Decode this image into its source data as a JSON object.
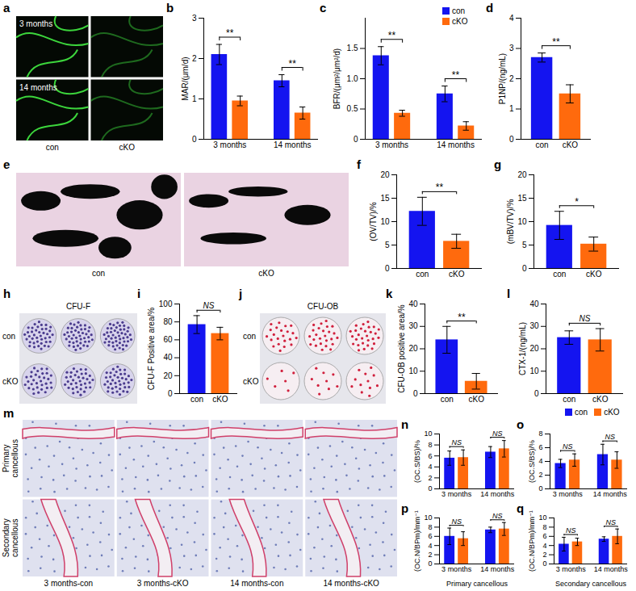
{
  "chart_data": [
    {
      "panel": "b",
      "type": "bar",
      "ylabel": "MAR/(μm/d)",
      "categories": [
        "3 months",
        "14 months"
      ],
      "series": [
        {
          "name": "con",
          "color": "#1414f0",
          "values": [
            2.1,
            1.45
          ],
          "errors": [
            0.25,
            0.15
          ]
        },
        {
          "name": "cKO",
          "color": "#ff6a0d",
          "values": [
            0.95,
            0.65
          ],
          "errors": [
            0.12,
            0.15
          ]
        }
      ],
      "ylim": [
        0,
        3
      ],
      "yticks": [
        0,
        1,
        2,
        3
      ],
      "significance": [
        "**",
        "**"
      ]
    },
    {
      "panel": "c",
      "type": "bar",
      "ylabel": "BFR/(μm²/μm²/d)",
      "categories": [
        "3 months",
        "14 months"
      ],
      "series": [
        {
          "name": "con",
          "color": "#1414f0",
          "values": [
            1.38,
            0.75
          ],
          "errors": [
            0.15,
            0.13
          ]
        },
        {
          "name": "cKO",
          "color": "#ff6a0d",
          "values": [
            0.43,
            0.22
          ],
          "errors": [
            0.05,
            0.07
          ]
        }
      ],
      "ylim": [
        0,
        2
      ],
      "yticks": [
        0,
        0.5,
        {
          "value": 1,
          "label": "1.0"
        },
        1.5
      ],
      "significance": [
        "**",
        "**"
      ],
      "legend": "top-right"
    },
    {
      "panel": "d",
      "type": "bar",
      "ylabel": "P1NP/(ng/mL)",
      "categories": [
        "con",
        "cKO"
      ],
      "values": [
        2.7,
        1.5
      ],
      "errors": [
        0.15,
        0.3
      ],
      "colors": [
        "#1414f0",
        "#ff6a0d"
      ],
      "ylim": [
        0,
        4
      ],
      "yticks": [
        0,
        1,
        2,
        3,
        4
      ],
      "significance": [
        "**"
      ]
    },
    {
      "panel": "f",
      "type": "bar",
      "ylabel": "(OV/TV)/%",
      "categories": [
        "con",
        "cKO"
      ],
      "values": [
        12.2,
        5.8
      ],
      "errors": [
        3,
        1.5
      ],
      "colors": [
        "#1414f0",
        "#ff6a0d"
      ],
      "ylim": [
        0,
        20
      ],
      "yticks": [
        0,
        5,
        10,
        15,
        20
      ],
      "significance": [
        "**"
      ]
    },
    {
      "panel": "g",
      "type": "bar",
      "ylabel": "(mBV/TV)/%",
      "categories": [
        "con",
        "cKO"
      ],
      "values": [
        9.2,
        5.2
      ],
      "errors": [
        3,
        1.5
      ],
      "colors": [
        "#1414f0",
        "#ff6a0d"
      ],
      "ylim": [
        0,
        20
      ],
      "yticks": [
        0,
        5,
        10,
        15,
        20
      ],
      "significance": [
        "*"
      ]
    },
    {
      "panel": "i",
      "type": "bar",
      "ylabel": "CFU-F Positive area/%",
      "categories": [
        "con",
        "cKO"
      ],
      "values": [
        77,
        67
      ],
      "errors": [
        10,
        7
      ],
      "colors": [
        "#1414f0",
        "#ff6a0d"
      ],
      "ylim": [
        0,
        100
      ],
      "yticks": [
        0,
        20,
        40,
        60,
        80,
        100
      ],
      "significance": [
        "NS"
      ]
    },
    {
      "panel": "k",
      "type": "bar",
      "ylabel": "CFU-OB positive area/%",
      "categories": [
        "con",
        "cKO"
      ],
      "values": [
        24,
        5.5
      ],
      "errors": [
        6,
        3.5
      ],
      "colors": [
        "#1414f0",
        "#ff6a0d"
      ],
      "ylim": [
        0,
        40
      ],
      "yticks": [
        0,
        10,
        20,
        30,
        40
      ],
      "significance": [
        "**"
      ]
    },
    {
      "panel": "l",
      "type": "bar",
      "ylabel": "CTX-1/(ng/mL)",
      "categories": [
        "con",
        "cKO"
      ],
      "values": [
        25,
        24
      ],
      "errors": [
        3,
        5
      ],
      "colors": [
        "#1414f0",
        "#ff6a0d"
      ],
      "ylim": [
        0,
        40
      ],
      "yticks": [
        0,
        10,
        20,
        30,
        40
      ],
      "significance": [
        "NS"
      ]
    },
    {
      "panel": "n",
      "type": "bar",
      "ylabel": "(OC.S/BS)/%",
      "categories": [
        "3 months",
        "14 months"
      ],
      "series": [
        {
          "name": "con",
          "color": "#1414f0",
          "values": [
            5.6,
            6.7
          ],
          "errors": [
            1.3,
            1.0
          ]
        },
        {
          "name": "cKO",
          "color": "#ff6a0d",
          "values": [
            5.7,
            7.3
          ],
          "errors": [
            1.4,
            1.5
          ]
        }
      ],
      "ylim": [
        0,
        10
      ],
      "yticks": [
        0,
        2,
        4,
        6,
        8,
        10
      ],
      "significance": [
        "NS",
        "NS"
      ],
      "legend": "top-right"
    },
    {
      "panel": "o",
      "type": "bar",
      "ylabel": "(OC.S/BS)/%",
      "categories": [
        "3 months",
        "14 months"
      ],
      "series": [
        {
          "name": "con",
          "color": "#1414f0",
          "values": [
            3.7,
            5.0
          ],
          "errors": [
            0.6,
            1.5
          ]
        },
        {
          "name": "cKO",
          "color": "#ff6a0d",
          "values": [
            4.2,
            4.2
          ],
          "errors": [
            0.9,
            1.2
          ]
        }
      ],
      "ylim": [
        0,
        8
      ],
      "yticks": [
        0,
        2,
        4,
        6,
        8
      ],
      "significance": [
        "NS",
        "NS"
      ]
    },
    {
      "panel": "p",
      "type": "bar",
      "ylabel": "(OC.N/BPm)/mm⁻¹",
      "xlabel": "Primary cancellous",
      "categories": [
        "3 months",
        "14 months"
      ],
      "series": [
        {
          "name": "con",
          "color": "#1414f0",
          "values": [
            6.0,
            7.4
          ],
          "errors": [
            1.8,
            0.6
          ]
        },
        {
          "name": "cKO",
          "color": "#ff6a0d",
          "values": [
            5.5,
            7.6
          ],
          "errors": [
            1.5,
            1.4
          ]
        }
      ],
      "ylim": [
        0,
        10
      ],
      "yticks": [
        0,
        2,
        4,
        6,
        8,
        10
      ],
      "significance": [
        "NS",
        "NS"
      ]
    },
    {
      "panel": "q",
      "type": "bar",
      "ylabel": "(OC.N/BPm)/mm⁻¹",
      "xlabel": "Secondary cancellous",
      "categories": [
        "3 months",
        "14 months"
      ],
      "series": [
        {
          "name": "con",
          "color": "#1414f0",
          "values": [
            4.3,
            5.4
          ],
          "errors": [
            1.5,
            0.5
          ]
        },
        {
          "name": "cKO",
          "color": "#ff6a0d",
          "values": [
            4.8,
            6.0
          ],
          "errors": [
            0.8,
            1.6
          ]
        }
      ],
      "ylim": [
        0,
        10
      ],
      "yticks": [
        0,
        2,
        4,
        6,
        8,
        10
      ],
      "significance": [
        "NS",
        "NS"
      ]
    }
  ],
  "images": [
    {
      "panel": "a",
      "rows": [
        "3 months",
        "14 months"
      ],
      "columns": [
        "con",
        "cKO"
      ]
    },
    {
      "panel": "e",
      "columns": [
        "con",
        "cKO"
      ]
    },
    {
      "panel": "h",
      "title": "CFU-F",
      "rows": [
        "con",
        "cKO"
      ]
    },
    {
      "panel": "j",
      "title": "CFU-OB",
      "rows": [
        "con",
        "cKO"
      ]
    },
    {
      "panel": "m",
      "rows": [
        "Primary cancellous",
        "Secondary cancellous"
      ],
      "columns": [
        "3 months-con",
        "3 months-cKO",
        "14 months-con",
        "14 months-cKO"
      ]
    }
  ]
}
